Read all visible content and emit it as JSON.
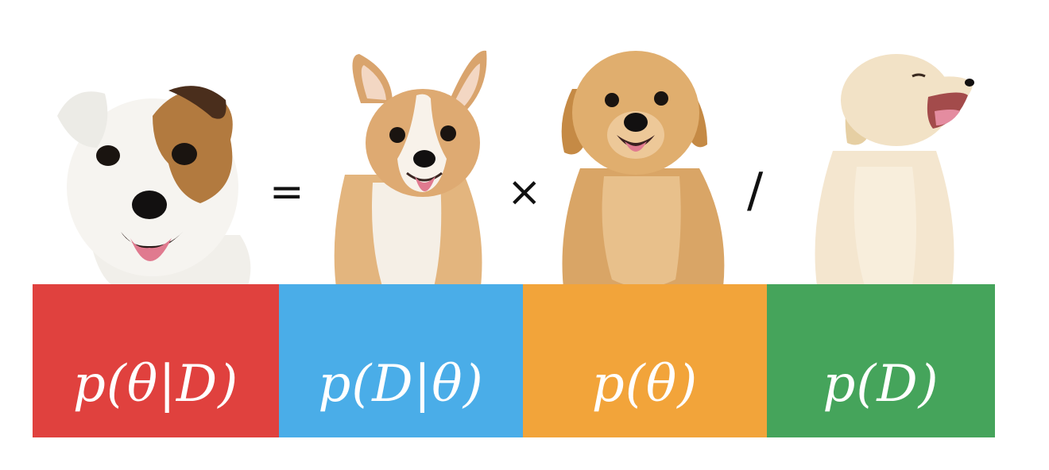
{
  "terms": {
    "posterior": "p(θ|D)",
    "likelihood": "p(D|θ)",
    "prior": "p(θ)",
    "evidence": "p(D)"
  },
  "operators": {
    "equals": "=",
    "times": "×",
    "divide": "/"
  },
  "colors": {
    "posterior": "#E0413E",
    "likelihood": "#4AADE8",
    "prior": "#F2A43A",
    "evidence": "#45A45B"
  },
  "icons": [
    "jack-russell-dog-icon",
    "corgi-dog-icon",
    "golden-retriever-puppy-icon",
    "yawning-lab-puppy-icon"
  ]
}
